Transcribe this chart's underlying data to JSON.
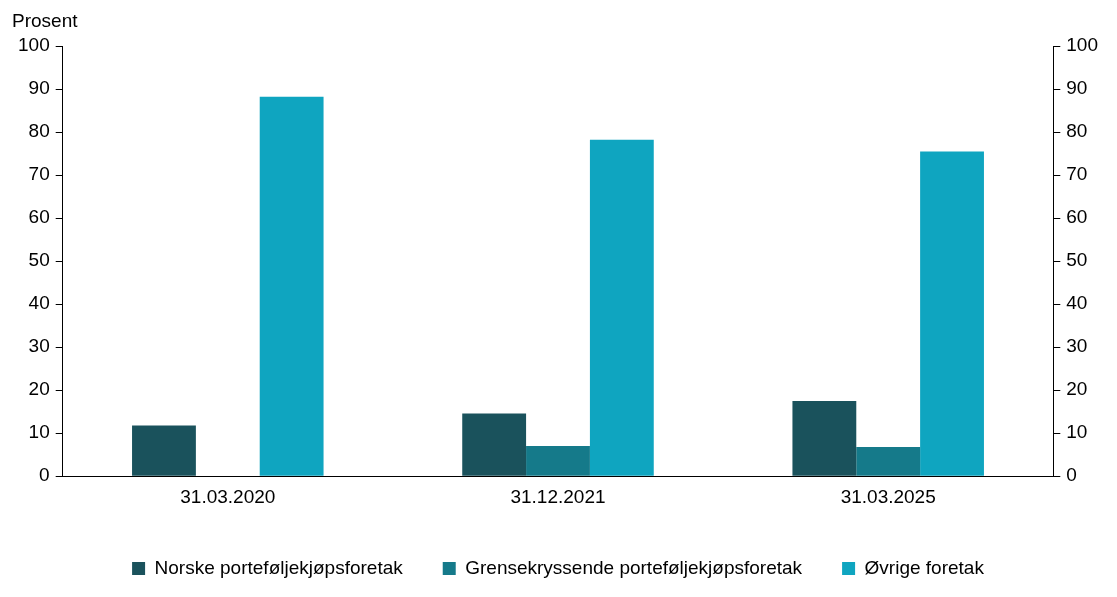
{
  "chart_data": {
    "type": "bar",
    "ylabel": "Prosent",
    "categories": [
      "31.03.2020",
      "31.12.2021",
      "31.03.2025"
    ],
    "series": [
      {
        "name": "Norske porteføljekjøpsforetak",
        "color": "#1a525c",
        "values": [
          11.8,
          14.6,
          17.5
        ]
      },
      {
        "name": "Grensekryssende porteføljekjøpsforetak",
        "color": "#157a8a",
        "values": [
          null,
          7.0,
          6.8
        ]
      },
      {
        "name": "Øvrige foretak",
        "color": "#0fa5c0",
        "values": [
          88.2,
          78.2,
          75.5
        ]
      }
    ],
    "ylim": [
      0,
      100
    ],
    "yticks": [
      0,
      10,
      20,
      30,
      40,
      50,
      60,
      70,
      80,
      90,
      100
    ],
    "y2lim": [
      0,
      100
    ],
    "y2ticks": [
      0,
      10,
      20,
      30,
      40,
      50,
      60,
      70,
      80,
      90,
      100
    ],
    "grid": false,
    "legend": "bottom"
  }
}
